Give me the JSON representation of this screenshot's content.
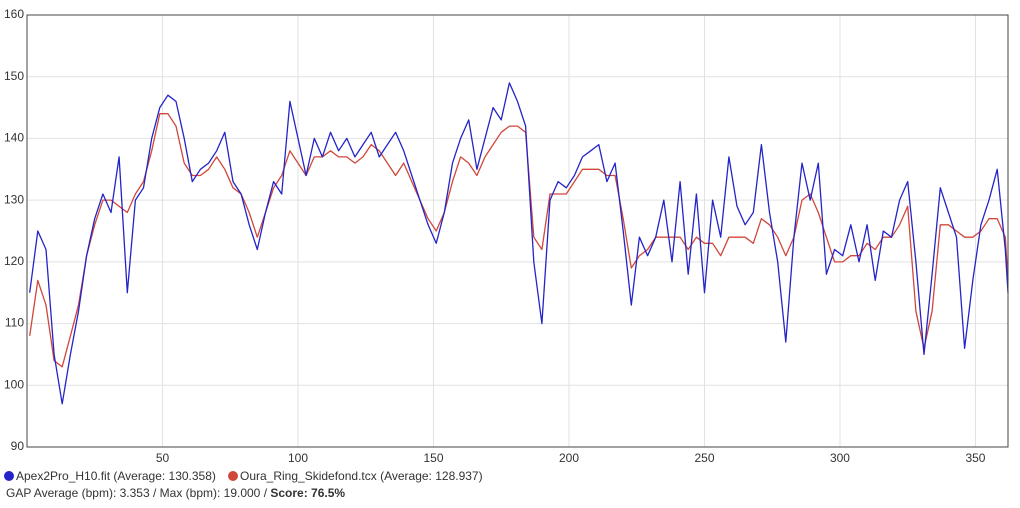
{
  "chart_data": {
    "type": "line",
    "x": [
      1,
      4,
      7,
      10,
      13,
      16,
      19,
      22,
      25,
      28,
      31,
      34,
      37,
      40,
      43,
      46,
      49,
      52,
      55,
      58,
      61,
      64,
      67,
      70,
      73,
      76,
      79,
      82,
      85,
      88,
      91,
      94,
      97,
      100,
      103,
      106,
      109,
      112,
      115,
      118,
      121,
      124,
      127,
      130,
      133,
      136,
      139,
      142,
      145,
      148,
      151,
      154,
      157,
      160,
      163,
      166,
      169,
      172,
      175,
      178,
      181,
      184,
      187,
      190,
      193,
      196,
      199,
      202,
      205,
      208,
      211,
      214,
      217,
      220,
      223,
      226,
      229,
      232,
      235,
      238,
      241,
      244,
      247,
      250,
      253,
      256,
      259,
      262,
      265,
      268,
      271,
      274,
      277,
      280,
      283,
      286,
      289,
      292,
      295,
      298,
      301,
      304,
      307,
      310,
      313,
      316,
      319,
      322,
      325,
      328,
      331,
      334,
      337,
      340,
      343,
      346,
      349,
      352,
      355,
      358,
      361,
      362
    ],
    "series": [
      {
        "name": "Apex2Pro_H10.fit (Average: 130.358)",
        "color": "#2424c8",
        "values": [
          115,
          125,
          122,
          105,
          97,
          105,
          112,
          121,
          127,
          131,
          128,
          137,
          115,
          130,
          132,
          140,
          145,
          147,
          146,
          140,
          133,
          135,
          136,
          138,
          141,
          133,
          131,
          126,
          122,
          128,
          133,
          131,
          146,
          140,
          134,
          140,
          137,
          141,
          138,
          140,
          137,
          139,
          141,
          137,
          139,
          141,
          138,
          134,
          130,
          126,
          123,
          128,
          136,
          140,
          143,
          135,
          140,
          145,
          143,
          149,
          146,
          142,
          120,
          110,
          130,
          133,
          132,
          134,
          137,
          138,
          139,
          133,
          136,
          125,
          113,
          124,
          121,
          124,
          130,
          120,
          133,
          118,
          131,
          115,
          130,
          124,
          137,
          129,
          126,
          128,
          139,
          128,
          120,
          107,
          124,
          136,
          130,
          136,
          118,
          122,
          121,
          126,
          120,
          126,
          117,
          125,
          124,
          130,
          133,
          120,
          105,
          118,
          132,
          128,
          124,
          106,
          117,
          126,
          130,
          135,
          122,
          115
        ]
      },
      {
        "name": "Oura_Ring_Skidefond.tcx (Average: 128.937)",
        "color": "#d0483a",
        "values": [
          108,
          117,
          113,
          104,
          103,
          108,
          113,
          121,
          126,
          130,
          130,
          129,
          128,
          131,
          133,
          138,
          144,
          144,
          142,
          136,
          134,
          134,
          135,
          137,
          135,
          132,
          131,
          128,
          124,
          128,
          132,
          134,
          138,
          136,
          134,
          137,
          137,
          138,
          137,
          137,
          136,
          137,
          139,
          138,
          136,
          134,
          136,
          133,
          130,
          127,
          125,
          128,
          133,
          137,
          136,
          134,
          137,
          139,
          141,
          142,
          142,
          141,
          124,
          122,
          131,
          131,
          131,
          133,
          135,
          135,
          135,
          134,
          134,
          127,
          119,
          121,
          122,
          124,
          124,
          124,
          124,
          122,
          124,
          123,
          123,
          121,
          124,
          124,
          124,
          123,
          127,
          126,
          124,
          121,
          124,
          130,
          131,
          128,
          124,
          120,
          120,
          121,
          121,
          123,
          122,
          124,
          124,
          126,
          129,
          112,
          106,
          112,
          126,
          126,
          125,
          124,
          124,
          125,
          127,
          127,
          124,
          117
        ]
      }
    ],
    "xlim": [
      0,
      362
    ],
    "ylim": [
      90,
      160
    ],
    "xticks": [
      50,
      100,
      150,
      200,
      250,
      300,
      350
    ],
    "yticks": [
      90,
      100,
      110,
      120,
      130,
      140,
      150,
      160
    ],
    "grid": true,
    "stats": "GAP Average (bpm): 3.353 / Max (bpm): 19.000 / ",
    "score": "Score: 76.5%"
  }
}
